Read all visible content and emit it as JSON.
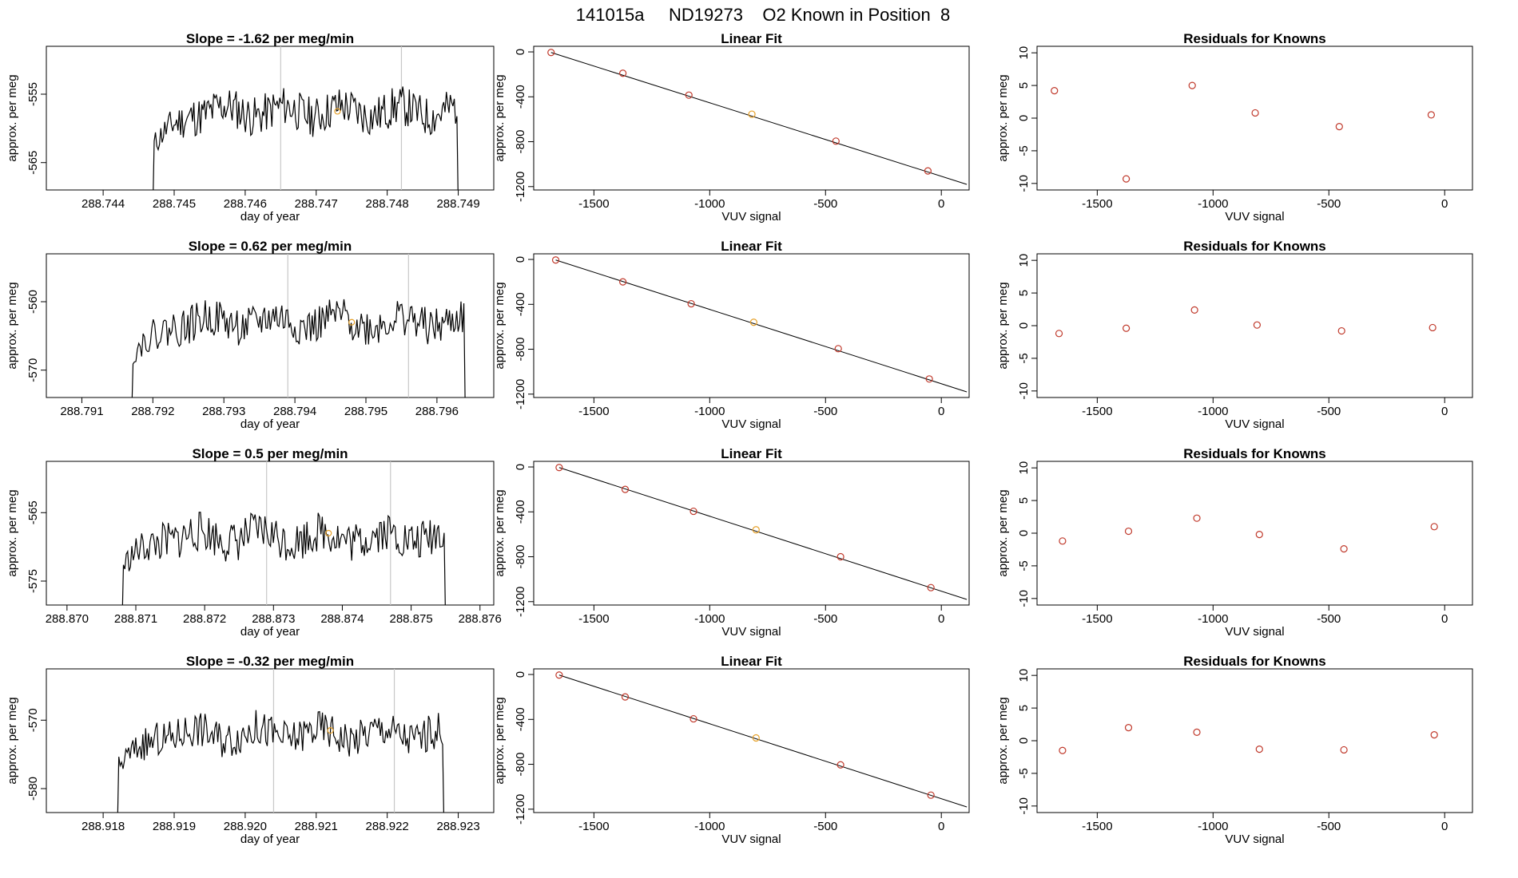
{
  "page_title": "141015a     ND19273    O2 Known in Position  8",
  "colors": {
    "line": "#000000",
    "marker": "#c0392b",
    "highlight": "#e6a028",
    "vline": "#c8c8c8",
    "axis": "#000000"
  },
  "chart_data": [
    {
      "type": "line",
      "title": "Slope =  -1.62  per meg/min",
      "xlabel": "day of year",
      "ylabel": "approx. per meg",
      "xticks": [
        "288.744",
        "288.745",
        "288.746",
        "288.747",
        "288.748",
        "288.749"
      ],
      "yticks": [
        "-555",
        "-565"
      ],
      "xlim": [
        288.7432,
        288.7495
      ],
      "ylim": [
        -569,
        -548
      ],
      "vlines": [
        288.7465,
        288.7482
      ],
      "marker": {
        "x": 288.7473,
        "y": -557.5
      },
      "series_x_range": [
        288.7447,
        288.749
      ],
      "series_y_mean": -557.5,
      "series_y_amp": 3,
      "seed": 11
    },
    {
      "type": "scatter",
      "title": "Linear Fit",
      "xlabel": "VUV signal",
      "ylabel": "approx. per meg",
      "xticks": [
        "-1500",
        "-1000",
        "-500",
        "0"
      ],
      "yticks": [
        "0",
        "-400",
        "-800",
        "-1200"
      ],
      "xlim": [
        -1760,
        120
      ],
      "ylim": [
        -1230,
        50
      ],
      "x": [
        -1685,
        -1375,
        -1090,
        -818,
        -455,
        -58
      ],
      "y": [
        -5,
        -190,
        -385,
        -555,
        -795,
        -1060
      ],
      "highlight_index": 3,
      "fit_line": {
        "x": [
          -1685,
          110
        ],
        "y": [
          -5,
          -1180
        ]
      }
    },
    {
      "type": "scatter",
      "title": "Residuals for Knowns",
      "xlabel": "VUV signal",
      "ylabel": "approx. per meg",
      "xticks": [
        "-1500",
        "-1000",
        "-500",
        "0"
      ],
      "yticks": [
        "10",
        "5",
        "0",
        "-5",
        "-10"
      ],
      "xlim": [
        -1760,
        120
      ],
      "ylim": [
        -11,
        11
      ],
      "x": [
        -1685,
        -1375,
        -1090,
        -818,
        -455,
        -58
      ],
      "y": [
        4.2,
        -9.3,
        5.0,
        0.8,
        -1.3,
        0.5
      ]
    },
    {
      "type": "line",
      "title": "Slope =  0.62  per meg/min",
      "xlabel": "day of year",
      "ylabel": "approx. per meg",
      "xticks": [
        "288.791",
        "288.792",
        "288.793",
        "288.794",
        "288.795",
        "288.796"
      ],
      "yticks": [
        "-560",
        "-570"
      ],
      "xlim": [
        288.7905,
        288.7968
      ],
      "ylim": [
        -574,
        -553
      ],
      "vlines": [
        288.7939,
        288.7956
      ],
      "marker": {
        "x": 288.7948,
        "y": -563
      },
      "series_x_range": [
        288.7917,
        288.7964
      ],
      "series_y_mean": -563,
      "series_y_amp": 2.8,
      "seed": 22
    },
    {
      "type": "scatter",
      "title": "Linear Fit",
      "xlabel": "VUV signal",
      "ylabel": "approx. per meg",
      "xticks": [
        "-1500",
        "-1000",
        "-500",
        "0"
      ],
      "yticks": [
        "0",
        "-400",
        "-800",
        "-1200"
      ],
      "xlim": [
        -1760,
        120
      ],
      "ylim": [
        -1230,
        50
      ],
      "x": [
        -1665,
        -1375,
        -1080,
        -810,
        -445,
        -52
      ],
      "y": [
        -5,
        -200,
        -395,
        -560,
        -795,
        -1065
      ],
      "highlight_index": 3,
      "fit_line": {
        "x": [
          -1665,
          110
        ],
        "y": [
          -5,
          -1180
        ]
      }
    },
    {
      "type": "scatter",
      "title": "Residuals for Knowns",
      "xlabel": "VUV signal",
      "ylabel": "approx. per meg",
      "xticks": [
        "-1500",
        "-1000",
        "-500",
        "0"
      ],
      "yticks": [
        "10",
        "5",
        "0",
        "-5",
        "-10"
      ],
      "xlim": [
        -1760,
        120
      ],
      "ylim": [
        -11,
        11
      ],
      "x": [
        -1665,
        -1375,
        -1080,
        -810,
        -445,
        -52
      ],
      "y": [
        -1.2,
        -0.4,
        2.4,
        0.1,
        -0.8,
        -0.3
      ]
    },
    {
      "type": "line",
      "title": "Slope =  0.5  per meg/min",
      "xlabel": "day of year",
      "ylabel": "approx. per meg",
      "xticks": [
        "288.870",
        "288.871",
        "288.872",
        "288.873",
        "288.874",
        "288.875",
        "288.876"
      ],
      "yticks": [
        "-565",
        "-575"
      ],
      "xlim": [
        288.8697,
        288.8762
      ],
      "ylim": [
        -578.5,
        -557.5
      ],
      "vlines": [
        288.8729,
        288.8747
      ],
      "marker": {
        "x": 288.8738,
        "y": -568
      },
      "series_x_range": [
        288.8708,
        288.8755
      ],
      "series_y_mean": -568.5,
      "series_y_amp": 3,
      "seed": 33
    },
    {
      "type": "scatter",
      "title": "Linear Fit",
      "xlabel": "VUV signal",
      "ylabel": "approx. per meg",
      "xticks": [
        "-1500",
        "-1000",
        "-500",
        "0"
      ],
      "yticks": [
        "0",
        "-400",
        "-800",
        "-1200"
      ],
      "xlim": [
        -1760,
        120
      ],
      "ylim": [
        -1230,
        50
      ],
      "x": [
        -1650,
        -1365,
        -1070,
        -800,
        -435,
        -45
      ],
      "y": [
        -5,
        -200,
        -395,
        -560,
        -800,
        -1075
      ],
      "highlight_index": 3,
      "fit_line": {
        "x": [
          -1650,
          110
        ],
        "y": [
          -5,
          -1180
        ]
      }
    },
    {
      "type": "scatter",
      "title": "Residuals for Knowns",
      "xlabel": "VUV signal",
      "ylabel": "approx. per meg",
      "xticks": [
        "-1500",
        "-1000",
        "-500",
        "0"
      ],
      "yticks": [
        "10",
        "5",
        "0",
        "-5",
        "-10"
      ],
      "xlim": [
        -1760,
        120
      ],
      "ylim": [
        -11,
        11
      ],
      "x": [
        -1650,
        -1365,
        -1070,
        -800,
        -435,
        -45
      ],
      "y": [
        -1.2,
        0.3,
        2.3,
        -0.2,
        -2.4,
        1.0
      ]
    },
    {
      "type": "line",
      "title": "Slope =  -0.32  per meg/min",
      "xlabel": "day of year",
      "ylabel": "approx. per meg",
      "xticks": [
        "288.918",
        "288.919",
        "288.920",
        "288.921",
        "288.922",
        "288.923"
      ],
      "yticks": [
        "-570",
        "-580"
      ],
      "xlim": [
        288.9172,
        288.9235
      ],
      "ylim": [
        -583.5,
        -562.5
      ],
      "vlines": [
        288.9204,
        288.9221
      ],
      "marker": {
        "x": 288.9212,
        "y": -571.5
      },
      "series_x_range": [
        288.9182,
        288.9228
      ],
      "series_y_mean": -572,
      "series_y_amp": 2.7,
      "seed": 44
    },
    {
      "type": "scatter",
      "title": "Linear Fit",
      "xlabel": "VUV signal",
      "ylabel": "approx. per meg",
      "xticks": [
        "-1500",
        "-1000",
        "-500",
        "0"
      ],
      "yticks": [
        "0",
        "-400",
        "-800",
        "-1200"
      ],
      "xlim": [
        -1760,
        120
      ],
      "ylim": [
        -1230,
        50
      ],
      "x": [
        -1650,
        -1365,
        -1070,
        -800,
        -435,
        -45
      ],
      "y": [
        -5,
        -200,
        -395,
        -565,
        -805,
        -1075
      ],
      "highlight_index": 3,
      "fit_line": {
        "x": [
          -1650,
          110
        ],
        "y": [
          -5,
          -1180
        ]
      }
    },
    {
      "type": "scatter",
      "title": "Residuals for Knowns",
      "xlabel": "VUV signal",
      "ylabel": "approx. per meg",
      "xticks": [
        "-1500",
        "-1000",
        "-500",
        "0"
      ],
      "yticks": [
        "10",
        "5",
        "0",
        "-5",
        "-10"
      ],
      "xlim": [
        -1760,
        120
      ],
      "ylim": [
        -11,
        11
      ],
      "x": [
        -1650,
        -1365,
        -1070,
        -800,
        -435,
        -45
      ],
      "y": [
        -1.5,
        2.0,
        1.3,
        -1.3,
        -1.4,
        0.9
      ]
    }
  ]
}
